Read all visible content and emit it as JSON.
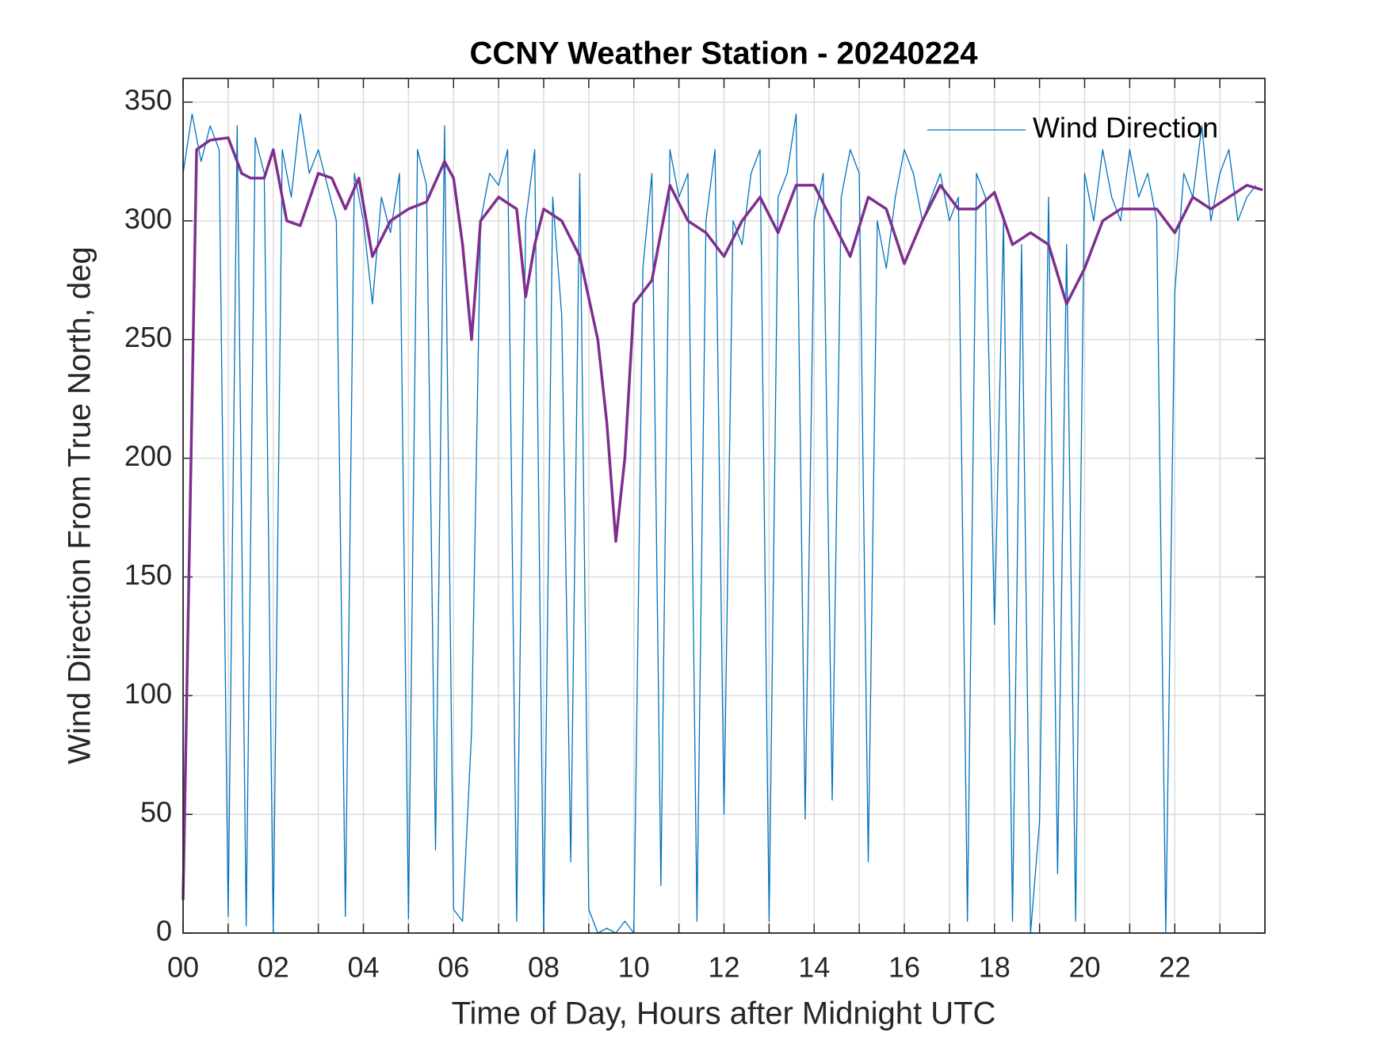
{
  "chart_data": {
    "type": "line",
    "title": "CCNY Weather Station - 20240224",
    "xlabel": "Time of Day, Hours after Midnight UTC",
    "ylabel": "Wind Direction From True North, deg",
    "xlim": [
      0,
      24
    ],
    "ylim": [
      0,
      360
    ],
    "xticks": [
      {
        "value": 0,
        "label": "00"
      },
      {
        "value": 2,
        "label": "02"
      },
      {
        "value": 4,
        "label": "04"
      },
      {
        "value": 6,
        "label": "06"
      },
      {
        "value": 8,
        "label": "08"
      },
      10,
      12,
      14,
      16,
      18,
      20,
      22
    ],
    "xminor_ticks": [
      1,
      3,
      5,
      7,
      9,
      11,
      13,
      15,
      17,
      19,
      21,
      23
    ],
    "yticks": [
      0,
      50,
      100,
      150,
      200,
      250,
      300,
      350
    ],
    "grid": true,
    "legend": "upper right",
    "series": [
      {
        "name": "Wind Direction",
        "color": "#0072BD",
        "width": 1.3,
        "x": [
          0,
          0.2,
          0.4,
          0.6,
          0.8,
          1,
          1.2,
          1.4,
          1.6,
          1.8,
          2,
          2.2,
          2.4,
          2.6,
          2.8,
          3,
          3.2,
          3.4,
          3.6,
          3.8,
          4,
          4.2,
          4.4,
          4.6,
          4.8,
          5,
          5.2,
          5.4,
          5.6,
          5.8,
          6,
          6.2,
          6.4,
          6.6,
          6.8,
          7,
          7.2,
          7.4,
          7.6,
          7.8,
          8,
          8.2,
          8.4,
          8.6,
          8.8,
          9,
          9.2,
          9.4,
          9.6,
          9.8,
          10,
          10.2,
          10.4,
          10.6,
          10.8,
          11,
          11.2,
          11.4,
          11.6,
          11.8,
          12,
          12.2,
          12.4,
          12.6,
          12.8,
          13,
          13.2,
          13.4,
          13.6,
          13.8,
          14,
          14.2,
          14.4,
          14.6,
          14.8,
          15,
          15.2,
          15.4,
          15.6,
          15.8,
          16,
          16.2,
          16.4,
          16.6,
          16.8,
          17,
          17.2,
          17.4,
          17.6,
          17.8,
          18,
          18.2,
          18.4,
          18.6,
          18.8,
          19,
          19.2,
          19.4,
          19.6,
          19.8,
          20,
          20.2,
          20.4,
          20.6,
          20.8,
          21,
          21.2,
          21.4,
          21.6,
          21.8,
          22,
          22.2,
          22.4,
          22.6,
          22.8,
          23,
          23.2,
          23.4,
          23.6,
          23.8
        ],
        "values": [
          320,
          345,
          325,
          340,
          330,
          7,
          340,
          3,
          335,
          320,
          0,
          330,
          310,
          345,
          320,
          330,
          315,
          300,
          7,
          320,
          300,
          265,
          310,
          295,
          320,
          6,
          330,
          315,
          35,
          340,
          10,
          5,
          85,
          300,
          320,
          315,
          330,
          5,
          300,
          330,
          0,
          310,
          260,
          30,
          320,
          10,
          0,
          2,
          0,
          5,
          0,
          280,
          320,
          20,
          330,
          310,
          320,
          5,
          300,
          330,
          50,
          300,
          290,
          320,
          330,
          5,
          310,
          320,
          345,
          48,
          300,
          320,
          56,
          310,
          330,
          320,
          30,
          300,
          280,
          310,
          330,
          320,
          300,
          310,
          320,
          300,
          310,
          5,
          320,
          310,
          130,
          300,
          5,
          290,
          0,
          47,
          310,
          25,
          290,
          5,
          320,
          300,
          330,
          310,
          300,
          330,
          310,
          320,
          300,
          0,
          270,
          320,
          310,
          340,
          300,
          320,
          330,
          300,
          310,
          315
        ]
      },
      {
        "color": "#7E2F8E",
        "width": 3.5,
        "x": [
          0,
          0.3,
          0.6,
          1.0,
          1.3,
          1.5,
          1.8,
          2.0,
          2.3,
          2.6,
          3.0,
          3.3,
          3.6,
          3.9,
          4.2,
          4.6,
          5.0,
          5.4,
          5.8,
          6.0,
          6.2,
          6.4,
          6.6,
          7.0,
          7.4,
          7.6,
          7.8,
          8.0,
          8.4,
          8.8,
          9.2,
          9.4,
          9.6,
          9.8,
          10.0,
          10.4,
          10.8,
          11.2,
          11.6,
          12.0,
          12.4,
          12.8,
          13.2,
          13.6,
          14.0,
          14.4,
          14.8,
          15.2,
          15.6,
          16.0,
          16.4,
          16.8,
          17.2,
          17.6,
          18.0,
          18.4,
          18.8,
          19.2,
          19.6,
          20.0,
          20.4,
          20.8,
          21.2,
          21.6,
          22.0,
          22.4,
          22.8,
          23.2,
          23.6,
          23.95
        ],
        "values": [
          14,
          330,
          334,
          335,
          320,
          318,
          318,
          330,
          300,
          298,
          320,
          318,
          305,
          318,
          285,
          300,
          305,
          308,
          325,
          318,
          290,
          250,
          300,
          310,
          305,
          268,
          290,
          305,
          300,
          285,
          250,
          215,
          165,
          200,
          265,
          275,
          315,
          300,
          295,
          285,
          300,
          310,
          295,
          315,
          315,
          300,
          285,
          310,
          305,
          282,
          300,
          315,
          305,
          305,
          312,
          290,
          295,
          290,
          265,
          280,
          300,
          305,
          305,
          305,
          295,
          310,
          305,
          310,
          315,
          313
        ]
      }
    ]
  }
}
